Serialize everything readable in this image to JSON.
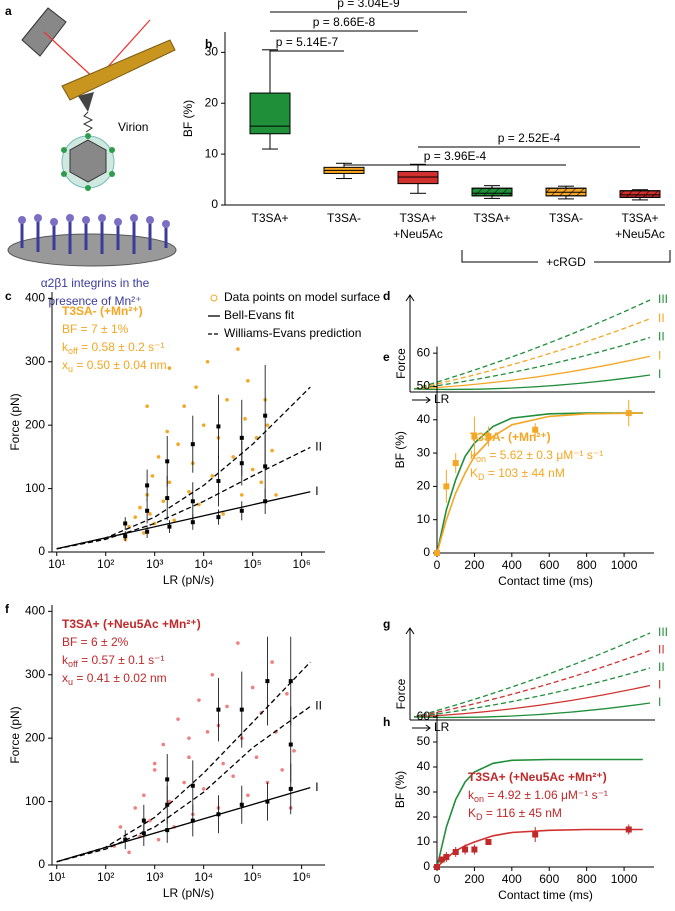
{
  "diagram": {
    "panel": "a",
    "virion_label": "Virion",
    "surface_label": [
      "α2β1 integrins in the",
      "presence of Mn²⁺"
    ]
  },
  "chart_data": [
    {
      "panel": "b",
      "type": "box",
      "ylabel": "BF (%)",
      "ylim": [
        0,
        34
      ],
      "yticks": [
        0,
        10,
        20,
        30
      ],
      "categories": [
        [
          "T3SA+"
        ],
        [
          "T3SA-"
        ],
        [
          "T3SA+",
          "+Neu5Ac"
        ],
        [
          "T3SA+"
        ],
        [
          "T3SA-"
        ],
        [
          "T3SA+",
          "+Neu5Ac"
        ]
      ],
      "group_label": "+cRGD",
      "boxes": [
        {
          "low": 11,
          "q1": 14,
          "median": 15.5,
          "q3": 22,
          "high": 30.5,
          "color": "#1f8f3a",
          "hatched": false
        },
        {
          "low": 5.2,
          "q1": 6.2,
          "median": 6.8,
          "q3": 7.4,
          "high": 8.2,
          "color": "#f5a623",
          "hatched": false
        },
        {
          "low": 2.3,
          "q1": 4.2,
          "median": 5.5,
          "q3": 6.6,
          "high": 8,
          "color": "#d0302e",
          "hatched": false
        },
        {
          "low": 1.3,
          "q1": 1.8,
          "median": 2.3,
          "q3": 3.3,
          "high": 3.8,
          "color": "#1f8f3a",
          "hatched": true
        },
        {
          "low": 1.2,
          "q1": 1.8,
          "median": 2.5,
          "q3": 3.3,
          "high": 3.7,
          "color": "#f5a623",
          "hatched": true
        },
        {
          "low": 1,
          "q1": 1.5,
          "median": 2,
          "q3": 2.8,
          "high": 3,
          "color": "#d0302e",
          "hatched": true
        }
      ],
      "comparisons": [
        "p = 5.14E-7",
        "p = 8.66E-8",
        "p = 3.04E-9",
        "p = 3.96E-4",
        "p = 2.52E-4"
      ]
    },
    {
      "panel": "c",
      "type": "scatter",
      "xlabel": "LR (pN/s)",
      "ylabel": "Force (pN)",
      "xscale": "log",
      "xlim": [
        8,
        3000000
      ],
      "ylim": [
        0,
        410
      ],
      "xticks": [
        {
          "value": 10,
          "label": "10¹"
        },
        {
          "value": 100,
          "label": "10²"
        },
        {
          "value": 1000,
          "label": "10³"
        },
        {
          "value": 10000,
          "label": "10⁴"
        },
        {
          "value": 100000,
          "label": "10⁵"
        },
        {
          "value": 1000000,
          "label": "10⁶"
        }
      ],
      "yticks": [
        0,
        100,
        200,
        300,
        400
      ],
      "legend": "upper right",
      "points": {
        "name": "Data points on model surface",
        "color": "#f5a623",
        "x": [
          250,
          300,
          400,
          500,
          600,
          700,
          800,
          900,
          1000,
          1200,
          1500,
          1800,
          2000,
          2500,
          3000,
          4000,
          5000,
          6000,
          7000,
          8000,
          10000,
          12000,
          15000,
          20000,
          25000,
          30000,
          40000,
          50000,
          60000,
          70000,
          80000,
          100000,
          120000,
          150000,
          180000,
          200000,
          250000,
          300000,
          700,
          2000
        ],
        "values": [
          20,
          40,
          55,
          70,
          30,
          90,
          60,
          120,
          45,
          150,
          80,
          190,
          110,
          50,
          170,
          230,
          95,
          140,
          260,
          75,
          200,
          300,
          120,
          180,
          60,
          240,
          150,
          320,
          90,
          210,
          270,
          130,
          180,
          110,
          240,
          200,
          160,
          90,
          230,
          290
        ]
      },
      "lines": [
        {
          "name": "Bell-Evans fit",
          "label": "I",
          "color": "#000000",
          "dash": false,
          "x": [
            10,
            1500000
          ],
          "values": [
            5,
            95
          ]
        },
        {
          "name": "Williams-Evans prediction",
          "label": "II",
          "color": "#000000",
          "dash": true,
          "x": [
            10,
            100,
            1000,
            10000,
            100000,
            1500000
          ],
          "values": [
            5,
            20,
            45,
            80,
            120,
            165
          ]
        },
        {
          "color": "#000000",
          "dash": true,
          "x": [
            10,
            100,
            1000,
            10000,
            100000,
            1500000
          ],
          "values": [
            5,
            22,
            55,
            105,
            170,
            260
          ]
        }
      ],
      "means": {
        "color": "#000000",
        "x": [
          250,
          700,
          700,
          1800,
          1800,
          6000,
          6000,
          20000,
          20000,
          60000,
          60000,
          180000,
          180000,
          180000,
          250,
          700,
          2000,
          6000,
          20000,
          60000
        ],
        "values": [
          45,
          65,
          105,
          85,
          143,
          80,
          170,
          112,
          198,
          140,
          180,
          135,
          215,
          80,
          25,
          32,
          40,
          47,
          55,
          65
        ],
        "errors": [
          10,
          20,
          25,
          35,
          40,
          30,
          45,
          40,
          50,
          35,
          60,
          50,
          80,
          20,
          8,
          10,
          10,
          12,
          12,
          15
        ]
      },
      "annotation_color": "#f5a623",
      "annotations": [
        "T3SA- (+Mn²⁺)",
        "BF = 7 ± 1%",
        {
          "main": "k",
          "sub": "off",
          "rest": " = 0.58 ± 0.2 s⁻¹"
        },
        {
          "main": "x",
          "sub": "u",
          "rest": " = 0.50 ± 0.04 nm"
        }
      ]
    },
    {
      "panel": "d",
      "type": "schematic",
      "xlabel": "LR",
      "ylabel": "Force",
      "curves": [
        {
          "label": "III",
          "color": "#1f8f3a",
          "dash": true
        },
        {
          "label": "II",
          "color": "#f5a623",
          "dash": true
        },
        {
          "label": "II",
          "color": "#1f8f3a",
          "dash": true
        },
        {
          "label": "I",
          "color": "#f5a623",
          "dash": false
        },
        {
          "label": "I",
          "color": "#1f8f3a",
          "dash": false
        }
      ]
    },
    {
      "panel": "e",
      "type": "line",
      "xlabel": "Contact time (ms)",
      "ylabel": "BF (%)",
      "xlim": [
        0,
        1160
      ],
      "ylim": [
        0,
        62
      ],
      "xticks": [
        0,
        200,
        400,
        600,
        800,
        1000
      ],
      "yticks": [
        0,
        10,
        20,
        30,
        40,
        50,
        60
      ],
      "curves": [
        {
          "color": "#1f8f3a",
          "x": [
            0,
            50,
            100,
            150,
            200,
            300,
            400,
            600,
            800,
            1100
          ],
          "values": [
            0,
            13,
            22,
            29,
            33,
            38,
            40.5,
            41.8,
            42,
            42
          ]
        },
        {
          "color": "#f5a623",
          "x": [
            0,
            50,
            100,
            150,
            200,
            300,
            400,
            600,
            800,
            1100
          ],
          "values": [
            0,
            10,
            18,
            24,
            29,
            35,
            38.5,
            41,
            41.8,
            42
          ]
        }
      ],
      "points": {
        "color": "#f5a623",
        "x": [
          0,
          50,
          100,
          200,
          275,
          525,
          1025
        ],
        "values": [
          0,
          20,
          27,
          35,
          35,
          37,
          42
        ],
        "errors": [
          0,
          5,
          3,
          6,
          3,
          2,
          4
        ]
      },
      "annotation_color": "#f5a623",
      "annotations": [
        "T3SA- (+Mn²⁺)",
        {
          "main": "k",
          "sub": "on",
          "rest": " = 5.62 ± 0.3 μM⁻¹ s⁻¹"
        },
        {
          "main": "K",
          "sub": "D",
          "rest": " = 103 ± 44 nM"
        }
      ]
    },
    {
      "panel": "f",
      "type": "scatter",
      "xlabel": "LR (pN/s)",
      "ylabel": "Force (pN)",
      "xscale": "log",
      "xlim": [
        8,
        3000000
      ],
      "ylim": [
        0,
        410
      ],
      "xticks": [
        {
          "value": 10,
          "label": "10¹"
        },
        {
          "value": 100,
          "label": "10²"
        },
        {
          "value": 1000,
          "label": "10³"
        },
        {
          "value": 10000,
          "label": "10⁴"
        },
        {
          "value": 100000,
          "label": "10⁵"
        },
        {
          "value": 1000000,
          "label": "10⁶"
        }
      ],
      "yticks": [
        0,
        100,
        200,
        300,
        400
      ],
      "points": {
        "color": "#f08080",
        "x": [
          150,
          200,
          300,
          400,
          500,
          600,
          800,
          1000,
          1200,
          1500,
          2000,
          2500,
          3000,
          4000,
          5000,
          6000,
          8000,
          10000,
          12000,
          15000,
          20000,
          25000,
          30000,
          40000,
          50000,
          60000,
          80000,
          100000,
          120000,
          150000,
          200000,
          250000,
          300000,
          400000,
          500000,
          600000,
          700000,
          1000,
          5000,
          20000
        ],
        "values": [
          30,
          60,
          20,
          90,
          45,
          110,
          70,
          150,
          40,
          190,
          100,
          60,
          230,
          130,
          170,
          80,
          260,
          120,
          210,
          300,
          90,
          160,
          250,
          140,
          350,
          200,
          110,
          280,
          170,
          240,
          130,
          320,
          210,
          150,
          270,
          90,
          180,
          160,
          200,
          220
        ]
      },
      "lines": [
        {
          "label": "I",
          "color": "#000000",
          "dash": false,
          "x": [
            10,
            1500000
          ],
          "values": [
            5,
            122
          ]
        },
        {
          "label": "II",
          "color": "#000000",
          "dash": true,
          "x": [
            10,
            100,
            1000,
            10000,
            100000,
            1500000
          ],
          "values": [
            5,
            25,
            60,
            115,
            185,
            250
          ]
        },
        {
          "color": "#000000",
          "dash": true,
          "x": [
            10,
            100,
            1000,
            10000,
            100000,
            1500000
          ],
          "values": [
            5,
            28,
            75,
            145,
            225,
            320
          ]
        }
      ],
      "means": {
        "color": "#000000",
        "x": [
          250,
          600,
          600,
          1800,
          1800,
          1800,
          6000,
          6000,
          20000,
          20000,
          60000,
          60000,
          200000,
          200000,
          600000,
          600000,
          600000
        ],
        "values": [
          40,
          50,
          70,
          55,
          95,
          135,
          70,
          125,
          80,
          245,
          95,
          245,
          100,
          290,
          120,
          190,
          290
        ],
        "errors": [
          15,
          20,
          25,
          20,
          30,
          40,
          25,
          40,
          30,
          50,
          30,
          60,
          30,
          70,
          40,
          60,
          70
        ]
      },
      "annotation_color": "#c0282a",
      "annotations": [
        "T3SA+ (+Neu5Ac +Mn²⁺)",
        "BF = 6 ± 2%",
        {
          "main": "k",
          "sub": "off",
          "rest": " = 0.57 ± 0.1 s⁻¹"
        },
        {
          "main": "x",
          "sub": "u",
          "rest": " = 0.41 ± 0.02 nm"
        }
      ]
    },
    {
      "panel": "g",
      "type": "schematic",
      "xlabel": "LR",
      "ylabel": "Force",
      "curves": [
        {
          "label": "III",
          "color": "#1f8f3a",
          "dash": true
        },
        {
          "label": "II",
          "color": "#d0302e",
          "dash": true
        },
        {
          "label": "II",
          "color": "#1f8f3a",
          "dash": true
        },
        {
          "label": "I",
          "color": "#d0302e",
          "dash": false
        },
        {
          "label": "I",
          "color": "#1f8f3a",
          "dash": false
        }
      ]
    },
    {
      "panel": "h",
      "type": "line",
      "xlabel": "Contact time (ms)",
      "ylabel": "BF (%)",
      "xlim": [
        0,
        1160
      ],
      "ylim": [
        0,
        62
      ],
      "xticks": [
        0,
        200,
        400,
        600,
        800,
        1000
      ],
      "yticks": [
        0,
        10,
        20,
        30,
        40,
        50,
        60
      ],
      "curves": [
        {
          "color": "#1f8f3a",
          "x": [
            0,
            50,
            100,
            150,
            200,
            300,
            400,
            600,
            1100
          ],
          "values": [
            0,
            16,
            27,
            34,
            38,
            41.5,
            42.7,
            43,
            43
          ]
        },
        {
          "color": "#d0302e",
          "x": [
            0,
            50,
            100,
            150,
            200,
            300,
            400,
            600,
            800,
            1100
          ],
          "values": [
            0,
            3.5,
            6.5,
            8.5,
            10,
            12.5,
            13.8,
            14.7,
            15,
            15
          ]
        }
      ],
      "points": {
        "color": "#c0282a",
        "x": [
          0,
          25,
          50,
          100,
          150,
          200,
          275,
          525,
          1025
        ],
        "values": [
          0,
          3,
          4,
          6,
          7,
          7,
          10,
          13,
          15
        ],
        "errors": [
          0,
          1,
          2,
          2,
          2,
          2,
          1,
          3,
          2
        ]
      },
      "annotation_color": "#c0282a",
      "annotations": [
        "T3SA+ (+Neu5Ac +Mn²⁺)",
        {
          "main": "k",
          "sub": "on",
          "rest": " = 4.92 ± 1.06 μM⁻¹ s⁻¹"
        },
        {
          "main": "K",
          "sub": "D",
          "rest": " = 116 ± 45 nM"
        }
      ]
    }
  ]
}
